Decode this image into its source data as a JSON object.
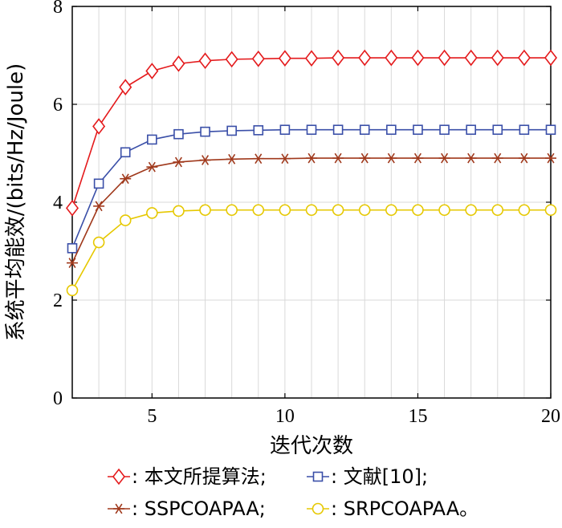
{
  "chart_data": {
    "type": "line",
    "title": "",
    "xlabel": "迭代次数",
    "ylabel": "系统平均能效/(bits/Hz/Joule)",
    "xlim": [
      2,
      20
    ],
    "ylim": [
      0,
      8
    ],
    "xticks": [
      5,
      10,
      15,
      20
    ],
    "xtick_labels": [
      "5",
      "10",
      "15",
      "20"
    ],
    "yticks": [
      0,
      2,
      4,
      6,
      8
    ],
    "ytick_labels": [
      "0",
      "2",
      "4",
      "6",
      "8"
    ],
    "grid": true,
    "legend_position": "bottom",
    "x": [
      2,
      3,
      4,
      5,
      6,
      7,
      8,
      9,
      10,
      11,
      12,
      13,
      14,
      15,
      16,
      17,
      18,
      19,
      20
    ],
    "series": [
      {
        "name": "本文所提算法;",
        "legend_sep": ": ",
        "color": "#e41a1c",
        "marker": "diamond",
        "values": [
          3.88,
          5.55,
          6.35,
          6.68,
          6.83,
          6.89,
          6.92,
          6.93,
          6.94,
          6.94,
          6.95,
          6.95,
          6.95,
          6.95,
          6.95,
          6.95,
          6.95,
          6.95,
          6.95
        ]
      },
      {
        "name": "文献[10];",
        "legend_sep": ": ",
        "color": "#3a4fa8",
        "marker": "square",
        "values": [
          3.06,
          4.38,
          5.02,
          5.28,
          5.39,
          5.44,
          5.46,
          5.47,
          5.48,
          5.48,
          5.48,
          5.48,
          5.48,
          5.48,
          5.48,
          5.48,
          5.48,
          5.48,
          5.48
        ]
      },
      {
        "name": "SSPCOAPAA;",
        "legend_sep": ": ",
        "color": "#a0391c",
        "marker": "asterisk",
        "values": [
          2.76,
          3.92,
          4.48,
          4.72,
          4.82,
          4.86,
          4.88,
          4.89,
          4.89,
          4.9,
          4.9,
          4.9,
          4.9,
          4.9,
          4.9,
          4.9,
          4.9,
          4.9,
          4.9
        ]
      },
      {
        "name": "SRPCOAPAA。",
        "legend_sep": ": ",
        "color": "#e6c800",
        "marker": "circle",
        "values": [
          2.2,
          3.18,
          3.63,
          3.78,
          3.82,
          3.84,
          3.84,
          3.84,
          3.84,
          3.84,
          3.84,
          3.84,
          3.84,
          3.84,
          3.84,
          3.84,
          3.84,
          3.84,
          3.84
        ]
      }
    ]
  }
}
